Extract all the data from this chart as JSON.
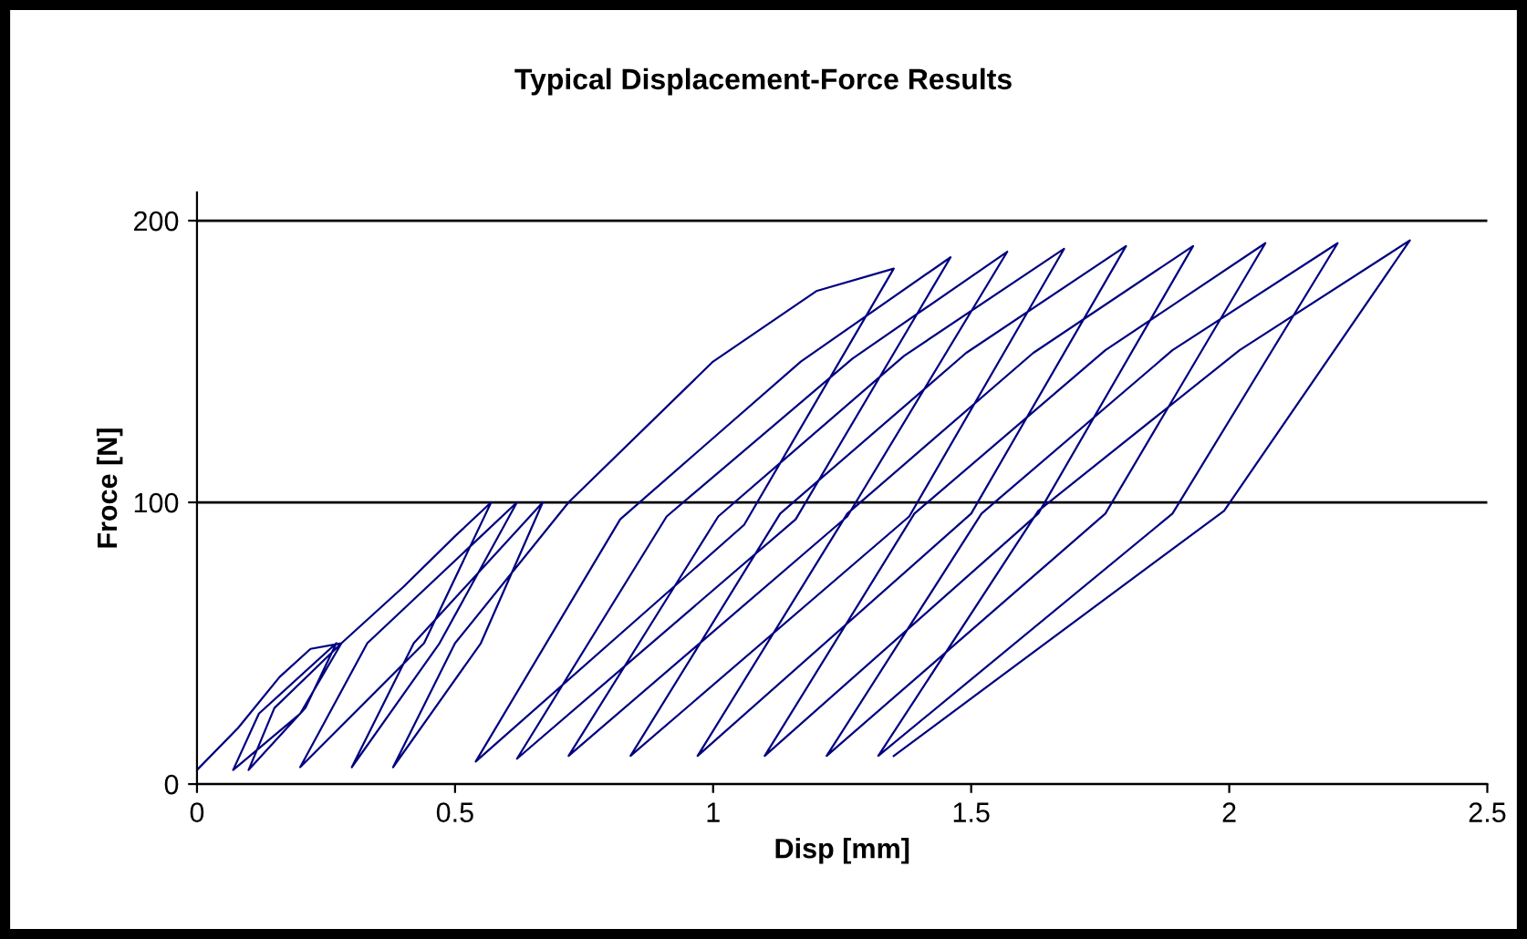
{
  "chart_data": {
    "type": "line",
    "title": "Typical Displacement-Force Results",
    "xlabel": "Disp [mm]",
    "ylabel": "Froce [N]",
    "series": [
      {
        "color": "#000080",
        "x": [
          0.0,
          0.08,
          0.16,
          0.22,
          0.28,
          0.2,
          0.07,
          0.12,
          0.27,
          0.21,
          0.1,
          0.15,
          0.28,
          0.4,
          0.5,
          0.57,
          0.44,
          0.2,
          0.33,
          0.62,
          0.47,
          0.3,
          0.42,
          0.67,
          0.55,
          0.38,
          0.5,
          0.72,
          1.0,
          1.2,
          1.35,
          1.06,
          0.54,
          0.82,
          1.17,
          1.46,
          1.16,
          0.62,
          0.91,
          1.27,
          1.57,
          1.26,
          0.72,
          1.01,
          1.37,
          1.68,
          1.38,
          0.84,
          1.13,
          1.49,
          1.8,
          1.5,
          0.97,
          1.26,
          1.62,
          1.93,
          1.63,
          1.1,
          1.39,
          1.76,
          2.07,
          1.76,
          1.22,
          1.52,
          1.89,
          2.21,
          1.89,
          1.32,
          1.63,
          2.02,
          2.35,
          1.99,
          1.35
        ],
        "values": [
          5,
          20,
          38,
          48,
          50,
          25,
          5,
          25,
          50,
          27,
          5,
          27,
          50,
          70,
          88,
          100,
          50,
          6,
          50,
          100,
          50,
          6,
          50,
          100,
          50,
          6,
          50,
          100,
          150,
          175,
          183,
          92,
          8,
          94,
          150,
          187,
          94,
          9,
          95,
          151,
          189,
          95,
          10,
          95,
          152,
          190,
          95,
          10,
          96,
          153,
          191,
          96,
          10,
          96,
          153,
          191,
          96,
          10,
          96,
          154,
          192,
          96,
          10,
          96,
          154,
          192,
          96,
          10,
          97,
          154,
          193,
          97,
          10
        ]
      }
    ],
    "xlim": [
      0,
      2.5
    ],
    "ylim": [
      0,
      210
    ],
    "xticks": [
      0,
      0.5,
      1,
      1.5,
      2,
      2.5
    ],
    "yticks": [
      0,
      100,
      200
    ],
    "grid": "y",
    "marker": "none",
    "line_style": "solid"
  }
}
